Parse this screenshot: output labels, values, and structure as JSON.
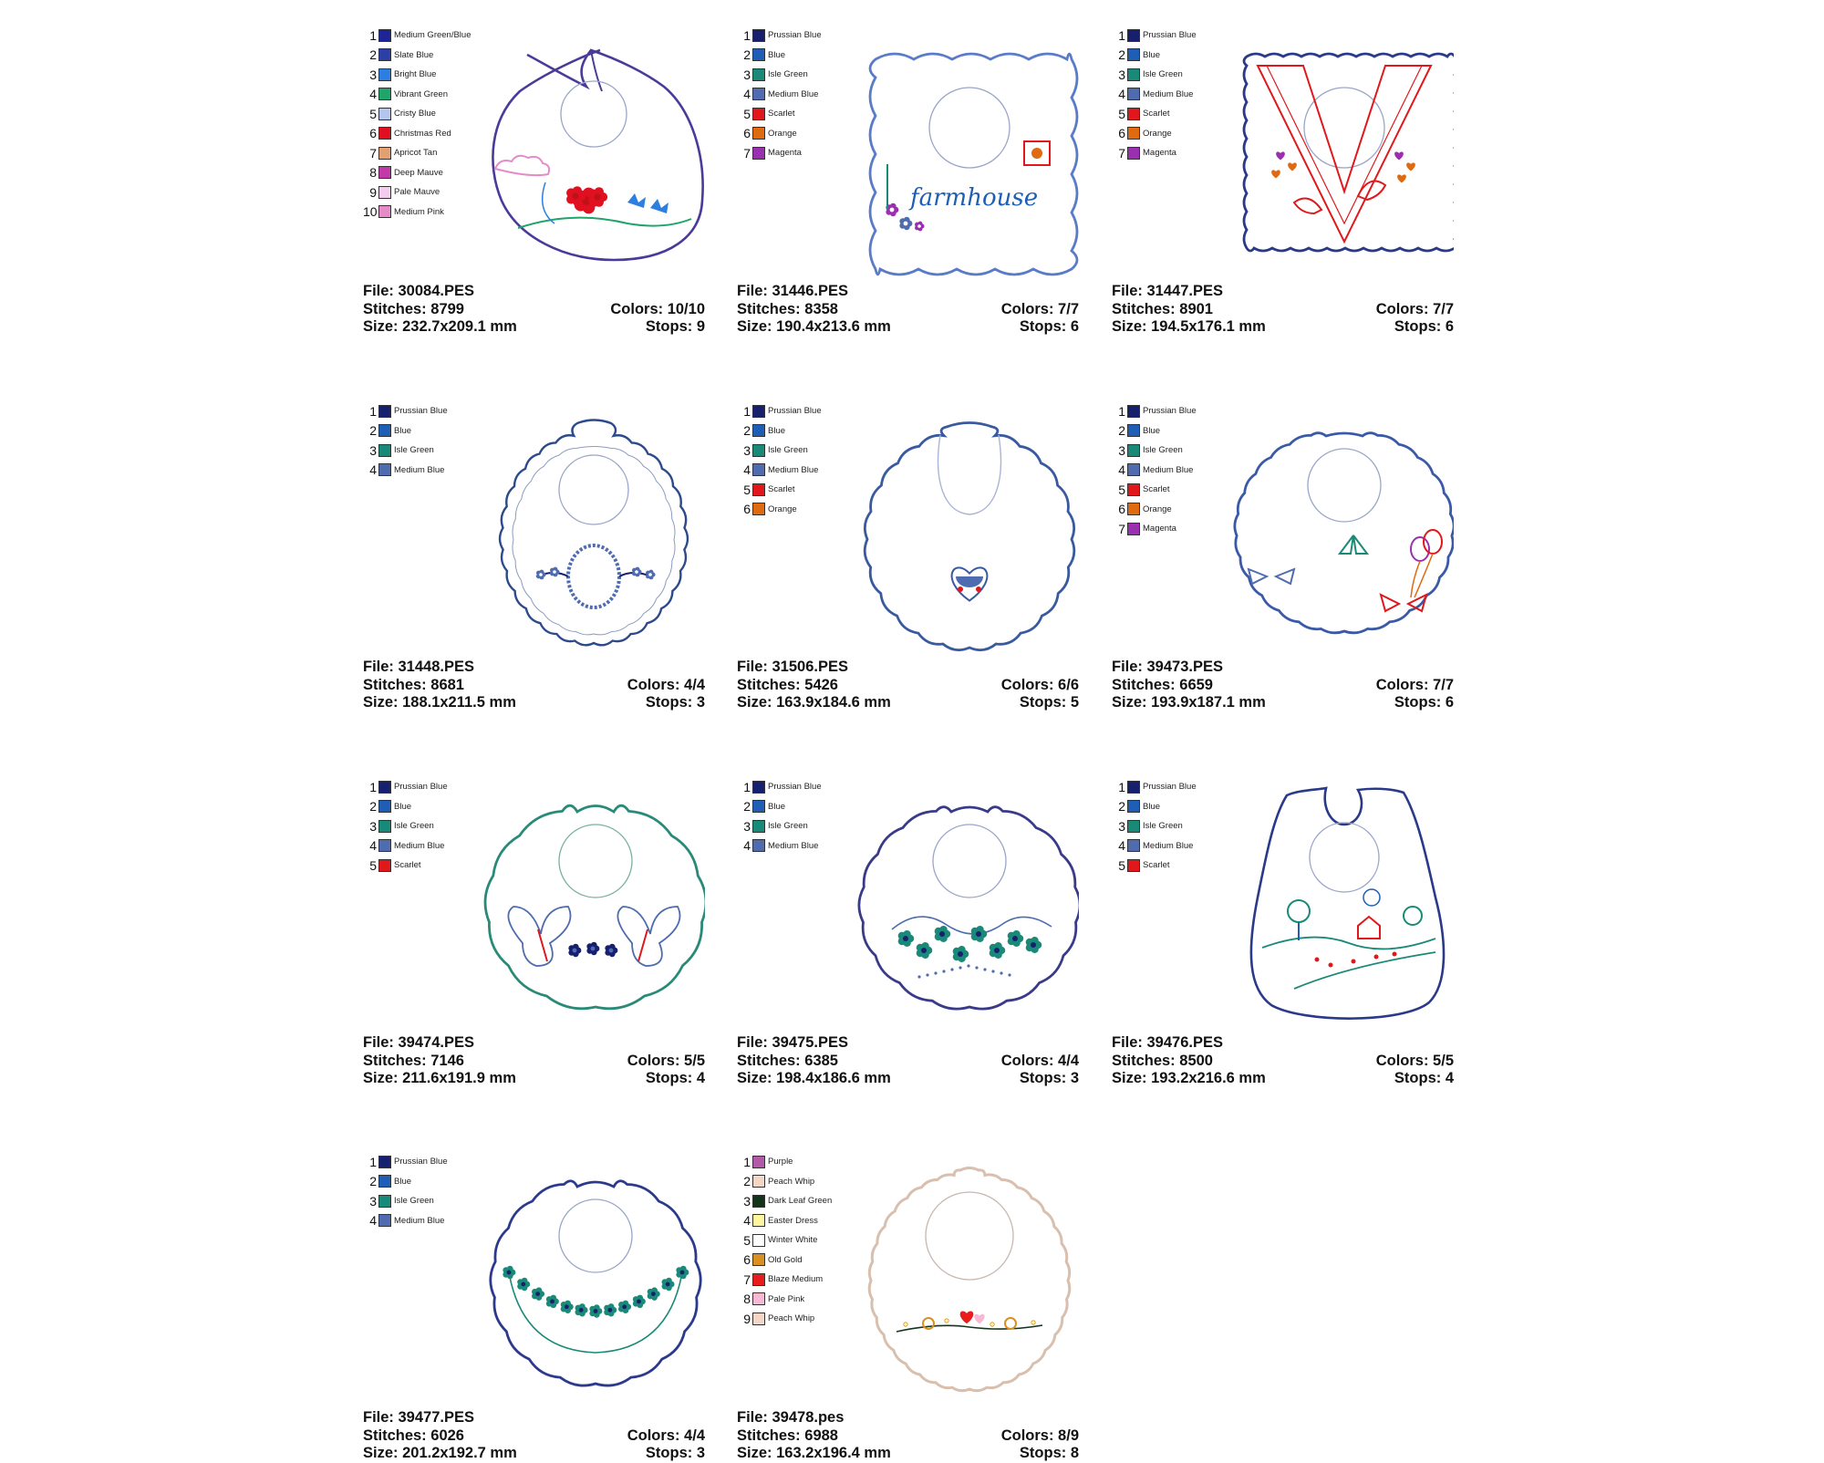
{
  "labels": {
    "file": "File: ",
    "stitches": "Stitches: ",
    "size": "Size: ",
    "colors": "Colors: ",
    "stops": "Stops: "
  },
  "cards": [
    {
      "file": "30084.PES",
      "stitches": "8799",
      "size": "232.7x209.1 mm",
      "colors": "10/10",
      "stops": "9",
      "shape": "bib-straps",
      "outline_color": "#4a3a9a",
      "motif": "flower-garden",
      "legend": [
        {
          "num": "1",
          "name": "Medium Green/Blue",
          "color": "#1c2496"
        },
        {
          "num": "2",
          "name": "Slate Blue",
          "color": "#2b3fa6"
        },
        {
          "num": "3",
          "name": "Bright Blue",
          "color": "#2c7fe0"
        },
        {
          "num": "4",
          "name": "Vibrant Green",
          "color": "#1fa46a"
        },
        {
          "num": "5",
          "name": "Cristy Blue",
          "color": "#b4c6ee"
        },
        {
          "num": "6",
          "name": "Christmas Red",
          "color": "#e01020"
        },
        {
          "num": "7",
          "name": "Apricot Tan",
          "color": "#e3a070"
        },
        {
          "num": "8",
          "name": "Deep Mauve",
          "color": "#c23aa8"
        },
        {
          "num": "9",
          "name": "Pale Mauve",
          "color": "#f4cdee"
        },
        {
          "num": "10",
          "name": "Medium Pink",
          "color": "#e58cc8"
        }
      ]
    },
    {
      "file": "31446.PES",
      "stitches": "8358",
      "size": "190.4x213.6 mm",
      "colors": "7/7",
      "stops": "6",
      "shape": "bib-square-scallop",
      "outline_color": "#5a7cc8",
      "motif": "farmhouse",
      "motif_text": "farmhouse",
      "legend": [
        {
          "num": "1",
          "name": "Prussian Blue",
          "color": "#16206e"
        },
        {
          "num": "2",
          "name": "Blue",
          "color": "#1e5eb4"
        },
        {
          "num": "3",
          "name": "Isle Green",
          "color": "#1a8a78"
        },
        {
          "num": "4",
          "name": "Medium Blue",
          "color": "#4f6cb0"
        },
        {
          "num": "5",
          "name": "Scarlet",
          "color": "#e0181c"
        },
        {
          "num": "6",
          "name": "Orange",
          "color": "#e06a10"
        },
        {
          "num": "7",
          "name": "Magenta",
          "color": "#9a30b0"
        }
      ]
    },
    {
      "file": "31447.PES",
      "stitches": "8901",
      "size": "194.5x176.1 mm",
      "colors": "7/7",
      "stops": "6",
      "shape": "bib-rect-scallop",
      "outline_color": "#2a3a8a",
      "motif": "hearts-birds",
      "legend": [
        {
          "num": "1",
          "name": "Prussian Blue",
          "color": "#16206e"
        },
        {
          "num": "2",
          "name": "Blue",
          "color": "#1e5eb4"
        },
        {
          "num": "3",
          "name": "Isle Green",
          "color": "#1a8a78"
        },
        {
          "num": "4",
          "name": "Medium Blue",
          "color": "#4f6cb0"
        },
        {
          "num": "5",
          "name": "Scarlet",
          "color": "#e0181c"
        },
        {
          "num": "6",
          "name": "Orange",
          "color": "#e06a10"
        },
        {
          "num": "7",
          "name": "Magenta",
          "color": "#9a30b0"
        }
      ]
    },
    {
      "file": "31448.PES",
      "stitches": "8681",
      "size": "188.1x211.5 mm",
      "colors": "4/4",
      "stops": "3",
      "shape": "bib-lace",
      "outline_color": "#2c4a8c",
      "motif": "oval-wreath",
      "legend": [
        {
          "num": "1",
          "name": "Prussian Blue",
          "color": "#16206e"
        },
        {
          "num": "2",
          "name": "Blue",
          "color": "#1e5eb4"
        },
        {
          "num": "3",
          "name": "Isle Green",
          "color": "#1a8a78"
        },
        {
          "num": "4",
          "name": "Medium Blue",
          "color": "#4f6cb0"
        }
      ]
    },
    {
      "file": "31506.PES",
      "stitches": "5426",
      "size": "163.9x184.6 mm",
      "colors": "6/6",
      "stops": "5",
      "shape": "bib-round-scallop-u",
      "outline_color": "#3a5aa0",
      "motif": "heart-pram",
      "legend": [
        {
          "num": "1",
          "name": "Prussian Blue",
          "color": "#16206e"
        },
        {
          "num": "2",
          "name": "Blue",
          "color": "#1e5eb4"
        },
        {
          "num": "3",
          "name": "Isle Green",
          "color": "#1a8a78"
        },
        {
          "num": "4",
          "name": "Medium Blue",
          "color": "#4f6cb0"
        },
        {
          "num": "5",
          "name": "Scarlet",
          "color": "#e0181c"
        },
        {
          "num": "6",
          "name": "Orange",
          "color": "#e06a10"
        }
      ]
    },
    {
      "file": "39473.PES",
      "stitches": "6659",
      "size": "193.9x187.1 mm",
      "colors": "7/7",
      "stops": "6",
      "shape": "bib-wide-scallop",
      "outline_color": "#3a5aa8",
      "motif": "balloons-bows",
      "legend": [
        {
          "num": "1",
          "name": "Prussian Blue",
          "color": "#16206e"
        },
        {
          "num": "2",
          "name": "Blue",
          "color": "#1e5eb4"
        },
        {
          "num": "3",
          "name": "Isle Green",
          "color": "#1a8a78"
        },
        {
          "num": "4",
          "name": "Medium Blue",
          "color": "#4f6cb0"
        },
        {
          "num": "5",
          "name": "Scarlet",
          "color": "#e0181c"
        },
        {
          "num": "6",
          "name": "Orange",
          "color": "#e06a10"
        },
        {
          "num": "7",
          "name": "Magenta",
          "color": "#9a30b0"
        }
      ]
    },
    {
      "file": "39474.PES",
      "stitches": "7146",
      "size": "211.6x191.9 mm",
      "colors": "5/5",
      "stops": "4",
      "shape": "bib-clover",
      "outline_color": "#2a8a78",
      "motif": "butterflies",
      "legend": [
        {
          "num": "1",
          "name": "Prussian Blue",
          "color": "#16206e"
        },
        {
          "num": "2",
          "name": "Blue",
          "color": "#1e5eb4"
        },
        {
          "num": "3",
          "name": "Isle Green",
          "color": "#1a8a78"
        },
        {
          "num": "4",
          "name": "Medium Blue",
          "color": "#4f6cb0"
        },
        {
          "num": "5",
          "name": "Scarlet",
          "color": "#e0181c"
        }
      ]
    },
    {
      "file": "39475.PES",
      "stitches": "6385",
      "size": "198.4x186.6 mm",
      "colors": "4/4",
      "stops": "3",
      "shape": "bib-wavy",
      "outline_color": "#3a3a8a",
      "motif": "flower-swirls",
      "legend": [
        {
          "num": "1",
          "name": "Prussian Blue",
          "color": "#16206e"
        },
        {
          "num": "2",
          "name": "Blue",
          "color": "#1e5eb4"
        },
        {
          "num": "3",
          "name": "Isle Green",
          "color": "#1a8a78"
        },
        {
          "num": "4",
          "name": "Medium Blue",
          "color": "#4f6cb0"
        }
      ]
    },
    {
      "file": "39476.PES",
      "stitches": "8500",
      "size": "193.2x216.6 mm",
      "colors": "5/5",
      "stops": "4",
      "shape": "bib-tall-straps",
      "outline_color": "#2a3a8a",
      "motif": "landscape",
      "legend": [
        {
          "num": "1",
          "name": "Prussian Blue",
          "color": "#16206e"
        },
        {
          "num": "2",
          "name": "Blue",
          "color": "#1e5eb4"
        },
        {
          "num": "3",
          "name": "Isle Green",
          "color": "#1a8a78"
        },
        {
          "num": "4",
          "name": "Medium Blue",
          "color": "#4f6cb0"
        },
        {
          "num": "5",
          "name": "Scarlet",
          "color": "#e0181c"
        }
      ]
    },
    {
      "file": "39477.PES",
      "stitches": "6026",
      "size": "201.2x192.7 mm",
      "colors": "4/4",
      "stops": "3",
      "shape": "bib-round-wavy",
      "outline_color": "#2c3a8e",
      "motif": "flower-garland",
      "legend": [
        {
          "num": "1",
          "name": "Prussian Blue",
          "color": "#16206e"
        },
        {
          "num": "2",
          "name": "Blue",
          "color": "#1e5eb4"
        },
        {
          "num": "3",
          "name": "Isle Green",
          "color": "#1a8a78"
        },
        {
          "num": "4",
          "name": "Medium Blue",
          "color": "#4f6cb0"
        }
      ]
    },
    {
      "file": "39478.pes",
      "stitches": "6988",
      "size": "163.2x196.4 mm",
      "colors": "8/9",
      "stops": "8",
      "shape": "bib-peach-scallop",
      "outline_color": "#d8bfae",
      "motif": "snails-branch",
      "legend": [
        {
          "num": "1",
          "name": "Purple",
          "color": "#b05aa8"
        },
        {
          "num": "2",
          "name": "Peach Whip",
          "color": "#f3d6c8"
        },
        {
          "num": "3",
          "name": "Dark Leaf Green",
          "color": "#13331a"
        },
        {
          "num": "4",
          "name": "Easter Dress",
          "color": "#fff6a0"
        },
        {
          "num": "5",
          "name": "Winter White",
          "color": "#ffffff"
        },
        {
          "num": "6",
          "name": "Old Gold",
          "color": "#d89020"
        },
        {
          "num": "7",
          "name": "Blaze Medium",
          "color": "#e81c1c"
        },
        {
          "num": "8",
          "name": "Pale Pink",
          "color": "#f8b8d4"
        },
        {
          "num": "9",
          "name": "Peach Whip",
          "color": "#f3d6c8"
        }
      ]
    }
  ]
}
